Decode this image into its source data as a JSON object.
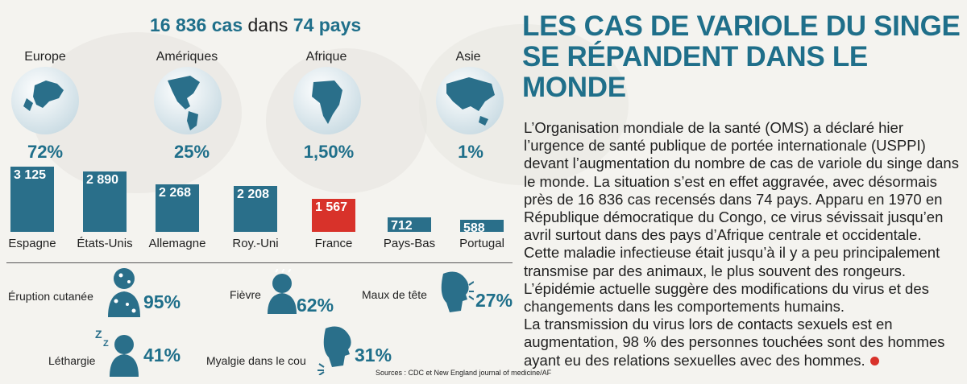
{
  "headline": {
    "count": "16 836 cas",
    "middle": "dans",
    "countries": "74 pays"
  },
  "regions": [
    {
      "name": "Europe",
      "pct": "72%"
    },
    {
      "name": "Amériques",
      "pct": "25%"
    },
    {
      "name": "Afrique",
      "pct": "1,50%"
    },
    {
      "name": "Asie",
      "pct": "1%"
    }
  ],
  "chart_data": {
    "type": "bar",
    "categories": [
      "Espagne",
      "États-Unis",
      "Allemagne",
      "Roy.-Uni",
      "France",
      "Pays-Bas",
      "Portugal"
    ],
    "values": [
      3125,
      2890,
      2268,
      2208,
      1567,
      712,
      588
    ],
    "value_labels": [
      "3 125",
      "2 890",
      "2 268",
      "2 208",
      "1 567",
      "712",
      "588"
    ],
    "highlight": "France",
    "colors": {
      "default": "#2a6f8a",
      "highlight": "#d8322a"
    }
  },
  "symptoms": [
    {
      "label": "Éruption cutanée",
      "pct": "95%"
    },
    {
      "label": "Fièvre",
      "pct": "62%"
    },
    {
      "label": "Maux de tête",
      "pct": "27%"
    },
    {
      "label": "Léthargie",
      "pct": "41%"
    },
    {
      "label": "Myalgie dans le cou",
      "pct": "31%"
    }
  ],
  "sources": "Sources : CDC et New England journal of medicine/AF",
  "title": "LES CAS DE VARIOLE DU SINGE SE RÉPANDENT DANS LE MONDE",
  "body": "L’Organisation mondiale de la santé (OMS) a déclaré hier l’urgence de santé publique de portée internationale (USPPI) devant l’augmentation du nombre de cas de variole du singe dans le monde. La situation s’est en effet aggravée, avec désormais près de 16 836 cas recensés dans 74 pays. Apparu en 1970 en République démocratique du Congo, ce virus sévissait jusqu’en avril surtout dans des pays d’Afrique centrale et occidentale. Cette maladie infectieuse était jusqu’à il y a peu principalement transmise par des animaux, le plus souvent des rongeurs. L’épidémie actuelle suggère des modifications du virus et des changements dans les comportements humains.\nLa transmission du virus lors de contacts sexuels est en augmentation, 98 % des personnes touchées sont des hommes ayant eu des relations sexuelles avec des hommes.",
  "colors": {
    "accent": "#1f6f8a",
    "alert": "#d8322a"
  }
}
